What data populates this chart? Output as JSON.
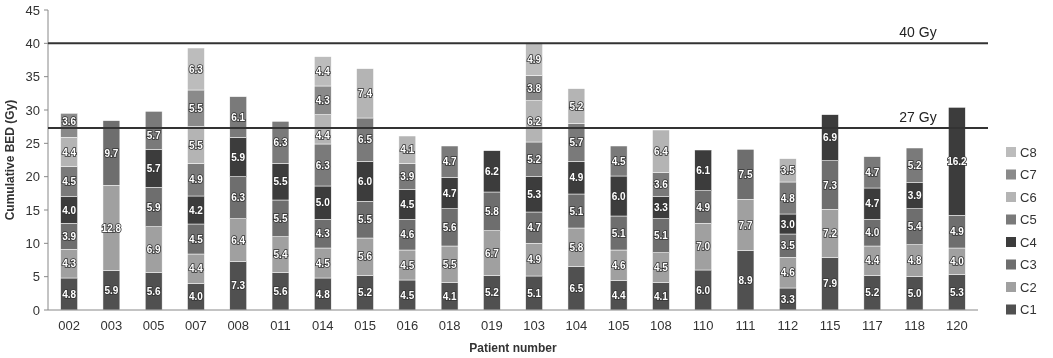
{
  "chart_data": {
    "type": "bar",
    "stacked": true,
    "legend": "right",
    "xlabel": "Patient number",
    "ylabel": "Cumulative BED (Gy)",
    "categories": [
      "002",
      "003",
      "005",
      "007",
      "008",
      "011",
      "014",
      "015",
      "016",
      "018",
      "019",
      "103",
      "104",
      "105",
      "108",
      "110",
      "111",
      "112",
      "115",
      "117",
      "118",
      "120"
    ],
    "ylim": [
      0,
      45
    ],
    "yticks": [
      0,
      5,
      10,
      15,
      20,
      25,
      30,
      35,
      40,
      45
    ],
    "series": [
      {
        "name": "C1",
        "color": "#505050",
        "values": [
          4.8,
          5.9,
          5.6,
          4.0,
          7.3,
          5.6,
          4.8,
          5.2,
          4.5,
          4.1,
          5.2,
          5.1,
          6.5,
          4.4,
          4.1,
          6.0,
          8.9,
          3.3,
          7.9,
          5.2,
          5.0,
          5.3
        ],
        "value_labels": [
          "4.8",
          "5.9",
          "5.6",
          "4.0",
          "7.3",
          "5.6",
          "4.8",
          "5.2",
          "4.5",
          "4.1",
          "5.2",
          "5.1",
          "6.5",
          "4.4",
          "4.1",
          "6.0",
          "8.9",
          "3.3",
          "7.9",
          "5.2",
          "5.0",
          "5.3"
        ]
      },
      {
        "name": "C2",
        "color": "#a0a0a0",
        "values": [
          4.3,
          12.8,
          6.9,
          4.4,
          6.4,
          5.4,
          4.5,
          5.6,
          4.5,
          5.5,
          6.7,
          4.9,
          5.8,
          4.6,
          4.5,
          7.0,
          7.7,
          4.6,
          7.2,
          4.4,
          4.8,
          4.0
        ],
        "value_labels": [
          "4.3",
          "12.8",
          "6.9",
          "4.4",
          "6.4",
          "5.4",
          "4.5",
          "5.6",
          "4.5",
          "5.5",
          "6.7",
          "4.9",
          "5.8",
          "4.6",
          "4.5",
          "7.0",
          "7.7",
          "4.6",
          "7.2",
          "4.4",
          "4.8",
          "4.0"
        ]
      },
      {
        "name": "C3",
        "color": "#6e6e6e",
        "values": [
          3.9,
          9.7,
          5.9,
          4.5,
          6.3,
          5.5,
          4.3,
          5.5,
          4.6,
          5.6,
          5.8,
          4.7,
          5.1,
          5.1,
          5.1,
          4.9,
          7.5,
          3.5,
          7.3,
          4.0,
          5.4,
          4.9
        ],
        "value_labels": [
          "3.9",
          "9.7",
          "5.9",
          "4.5",
          "6.3",
          "5.5",
          "4.3",
          "5.5",
          "4.6",
          "5.6",
          "5.8",
          "4.7",
          "5.1",
          "5.1",
          "5.1",
          "4.9",
          "7.5",
          "3.5",
          "7.3",
          "4.0",
          "5.4",
          "4.9"
        ]
      },
      {
        "name": "C4",
        "color": "#3c3c3c",
        "values": [
          4.0,
          null,
          5.7,
          4.2,
          5.9,
          5.5,
          5.0,
          6.0,
          4.5,
          4.7,
          6.2,
          5.3,
          4.9,
          6.0,
          3.3,
          6.1,
          null,
          3.0,
          6.9,
          4.7,
          3.9,
          16.2
        ],
        "value_labels": [
          "4.0",
          null,
          "5.7",
          "4.2",
          "5.9",
          "5.5",
          "5.0",
          "6.0",
          "4.5",
          "4.7",
          "6.2",
          "5.3",
          "4.9",
          "6.0",
          "3.3",
          "6.1",
          null,
          "3.0",
          "6.9",
          "4.7",
          "3.9",
          "16.2"
        ]
      },
      {
        "name": "C5",
        "color": "#7a7a7a",
        "values": [
          4.5,
          null,
          5.7,
          4.9,
          6.1,
          6.3,
          6.3,
          6.5,
          3.9,
          4.7,
          null,
          5.2,
          5.7,
          4.5,
          3.6,
          null,
          null,
          4.8,
          null,
          4.7,
          5.2,
          null
        ],
        "value_labels": [
          "4.5",
          null,
          "5.7",
          "4.9",
          "6.1",
          "6.3",
          "6.3",
          "6.5",
          "3.9",
          "4.7",
          null,
          "5.2",
          "5.7",
          "4.5",
          "3.6",
          null,
          null,
          "4.8",
          null,
          "4.7",
          "5.2",
          null
        ]
      },
      {
        "name": "C6",
        "color": "#b4b4b4",
        "values": [
          4.4,
          null,
          null,
          5.5,
          null,
          null,
          4.4,
          7.4,
          4.1,
          null,
          null,
          6.2,
          5.2,
          null,
          6.4,
          null,
          null,
          3.5,
          null,
          null,
          null,
          null
        ],
        "value_labels": [
          "4.4",
          null,
          null,
          "5.5",
          null,
          null,
          "4.4",
          "7.4",
          "4.1",
          null,
          null,
          "6.2",
          "5.2",
          null,
          "6.4",
          null,
          null,
          "3.5",
          null,
          null,
          null,
          null
        ]
      },
      {
        "name": "C7",
        "color": "#8a8a8a",
        "values": [
          3.6,
          null,
          null,
          5.5,
          null,
          null,
          4.3,
          null,
          null,
          null,
          null,
          3.8,
          null,
          null,
          null,
          null,
          null,
          null,
          null,
          null,
          null,
          null
        ],
        "value_labels": [
          "3.6",
          null,
          null,
          "5.5",
          null,
          null,
          "4.3",
          null,
          null,
          null,
          null,
          "3.8",
          null,
          null,
          null,
          null,
          null,
          null,
          null,
          null,
          null,
          null
        ]
      },
      {
        "name": "C8",
        "color": "#bcbcbc",
        "values": [
          null,
          null,
          null,
          6.3,
          null,
          null,
          4.4,
          null,
          null,
          null,
          null,
          4.9,
          null,
          null,
          null,
          null,
          null,
          null,
          null,
          null,
          null,
          null
        ],
        "value_labels": [
          null,
          null,
          null,
          "6.3",
          null,
          null,
          "4.4",
          null,
          null,
          null,
          null,
          "4.9",
          null,
          null,
          null,
          null,
          null,
          null,
          null,
          null,
          null,
          null
        ]
      }
    ],
    "ref_lines": [
      {
        "axis": "y",
        "value": 40,
        "label": "40 Gy",
        "color": "#333333"
      },
      {
        "axis": "y",
        "value": 27.3,
        "label": "27 Gy",
        "color": "#333333"
      }
    ]
  }
}
